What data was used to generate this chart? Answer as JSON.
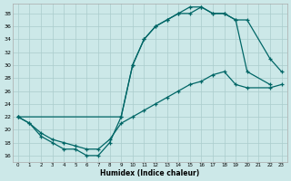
{
  "xlabel": "Humidex (Indice chaleur)",
  "bg_color": "#cce8e8",
  "grid_color": "#aacccc",
  "line_color": "#006666",
  "xlim": [
    -0.5,
    23.5
  ],
  "ylim": [
    15.0,
    39.5
  ],
  "xticks": [
    0,
    1,
    2,
    3,
    4,
    5,
    6,
    7,
    8,
    9,
    10,
    11,
    12,
    13,
    14,
    15,
    16,
    17,
    18,
    19,
    20,
    21,
    22,
    23
  ],
  "yticks": [
    16,
    18,
    20,
    22,
    24,
    26,
    28,
    30,
    32,
    34,
    36,
    38
  ],
  "curve1_x": [
    0,
    1,
    2,
    3,
    4,
    5,
    6,
    7,
    8,
    9,
    10,
    11,
    12,
    13,
    14,
    15,
    16,
    17,
    18,
    19,
    20,
    22
  ],
  "curve1_y": [
    22,
    21,
    19,
    18,
    17,
    17,
    16,
    16,
    18,
    22,
    30,
    34,
    36,
    37,
    38,
    39,
    39,
    38,
    38,
    37,
    29,
    27
  ],
  "curve2_x": [
    0,
    9,
    10,
    11,
    12,
    13,
    14,
    15,
    16,
    17,
    18,
    19,
    20,
    22,
    23
  ],
  "curve2_y": [
    22,
    22,
    30,
    34,
    36,
    37,
    38,
    38,
    39,
    38,
    38,
    37,
    37,
    31,
    29
  ],
  "curve3_x": [
    0,
    1,
    2,
    3,
    4,
    5,
    6,
    7,
    8,
    9,
    10,
    11,
    12,
    13,
    14,
    15,
    16,
    17,
    18,
    19,
    20,
    22,
    23
  ],
  "curve3_y": [
    22,
    21,
    19.5,
    18.5,
    18,
    17.5,
    17,
    17,
    18.5,
    21,
    22,
    23,
    24,
    25,
    26,
    27,
    27.5,
    28.5,
    29,
    27,
    26.5,
    26.5,
    27
  ]
}
